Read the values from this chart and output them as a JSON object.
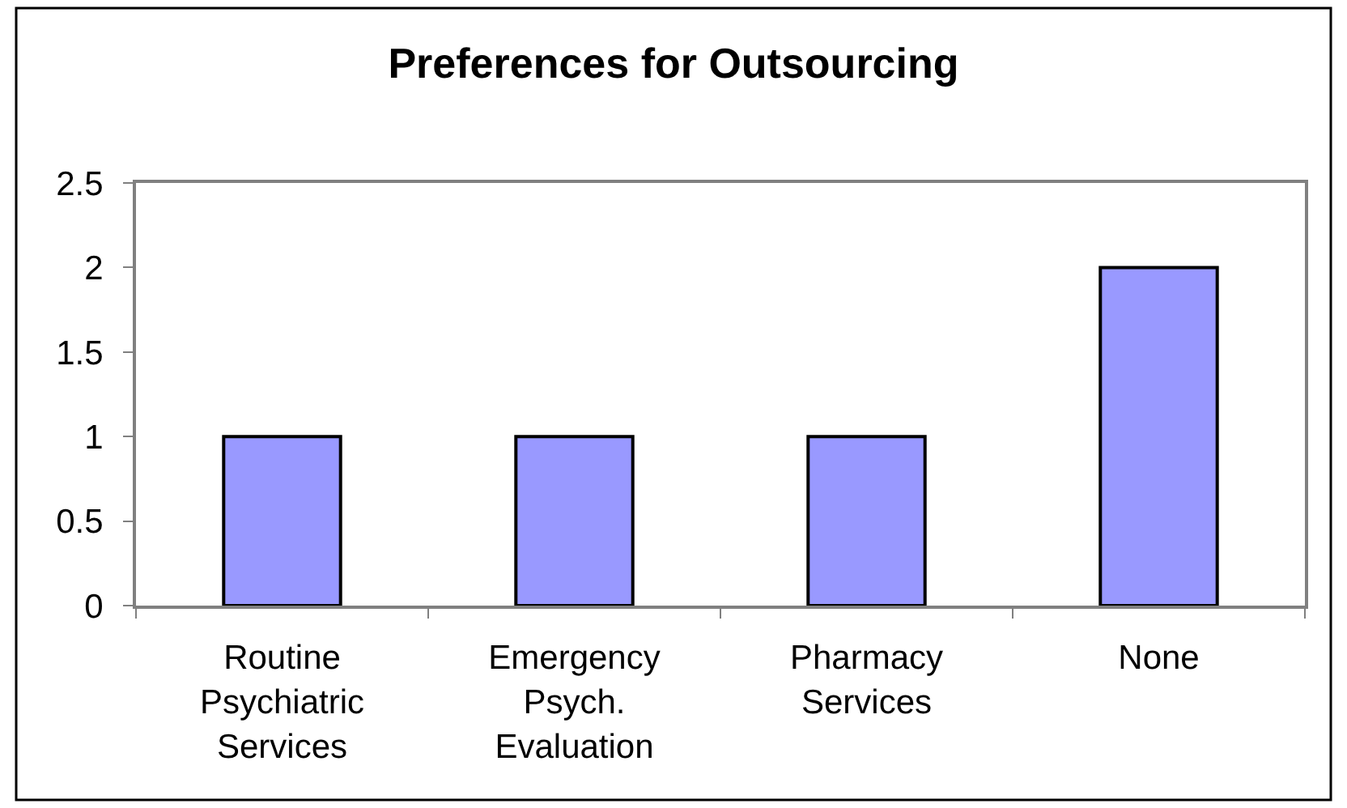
{
  "chart_data": {
    "type": "bar",
    "title": "Preferences for Outsourcing",
    "categories": [
      "Routine Psychiatric Services",
      "Emergency Psych. Evaluation",
      "Pharmacy Services",
      "None"
    ],
    "values": [
      1,
      1,
      1,
      2
    ],
    "color": "#9999ff",
    "ylim": [
      0,
      2.5
    ],
    "yticks": [
      0,
      0.5,
      1,
      1.5,
      2,
      2.5
    ],
    "grid": false
  }
}
